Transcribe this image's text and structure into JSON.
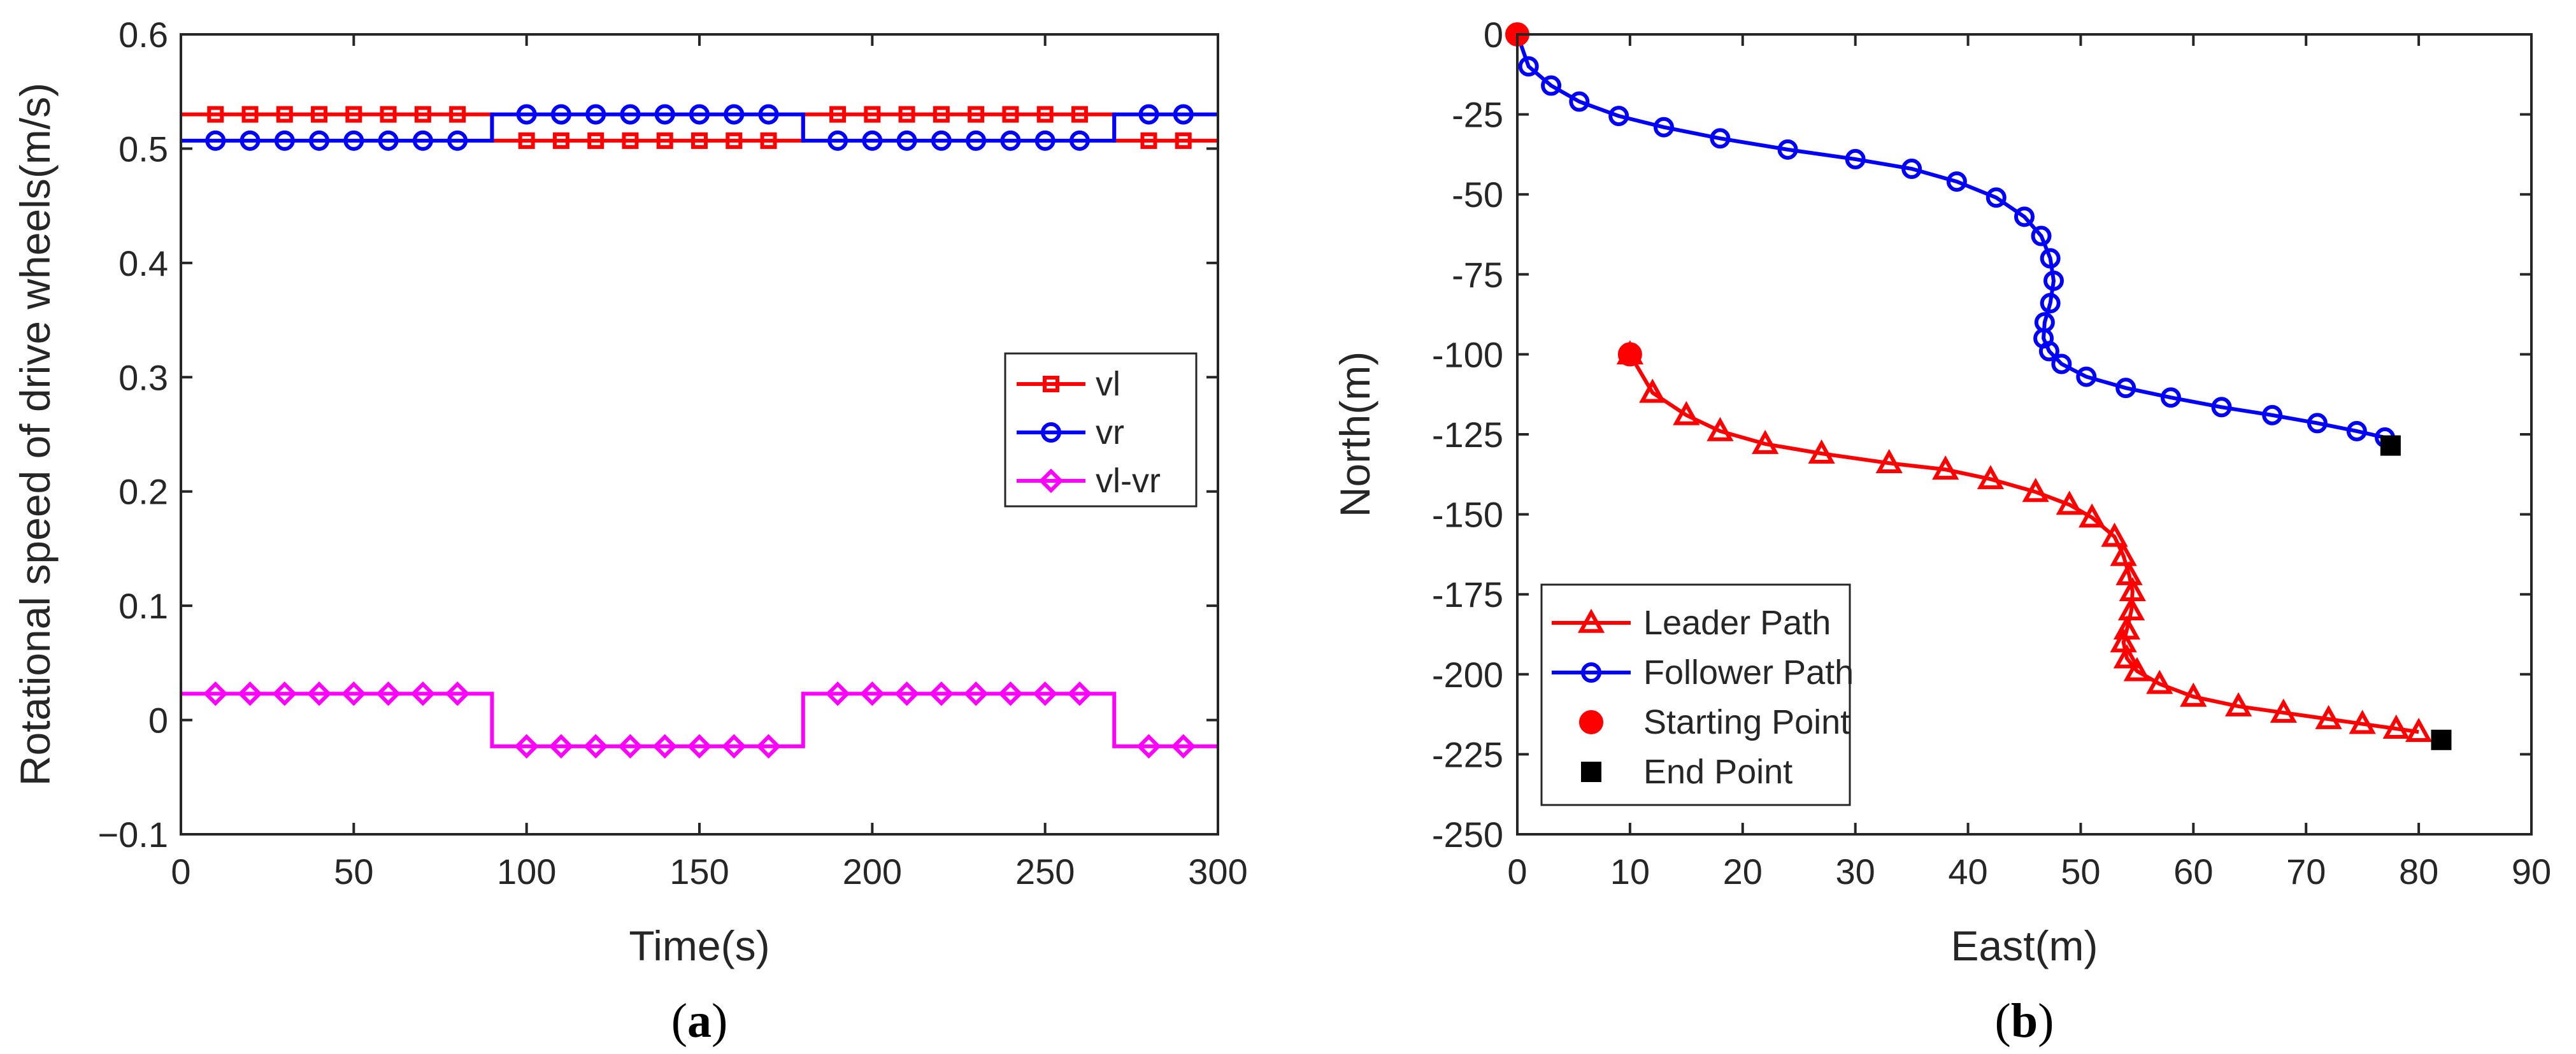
{
  "colors": {
    "red": "#FF0000",
    "blue": "#0000FF",
    "magenta": "#FF00FF",
    "black": "#000000",
    "axis": "#262626"
  },
  "panels": {
    "a": {
      "label_open": "(",
      "label_letter": "a",
      "label_close": ")"
    },
    "b": {
      "label_open": "(",
      "label_letter": "b",
      "label_close": ")"
    }
  },
  "chart_data": [
    {
      "type": "line",
      "panel": "a",
      "title": "",
      "xlabel": "Time(s)",
      "ylabel": "Rotational speed of drive wheels(m/s)",
      "xlim": [
        0,
        300
      ],
      "ylim": [
        -0.1,
        0.6
      ],
      "xticks": [
        0,
        50,
        100,
        150,
        200,
        250,
        300
      ],
      "xtick_labels": [
        "0",
        "50",
        "100",
        "150",
        "200",
        "250",
        "300"
      ],
      "yticks": [
        -0.1,
        0,
        0.1,
        0.2,
        0.3,
        0.4,
        0.5,
        0.6
      ],
      "ytick_labels": [
        "−0.1",
        "0",
        "0.1",
        "0.2",
        "0.3",
        "0.4",
        "0.5",
        "0.6"
      ],
      "legend_position": "right",
      "series": [
        {
          "name": "vl",
          "color": "#FF0000",
          "marker": "square",
          "breaks": [
            0,
            90,
            180,
            270,
            300
          ],
          "levels": [
            0.53,
            0.507,
            0.53,
            0.507
          ],
          "marker_x": [
            10,
            20,
            30,
            40,
            50,
            60,
            70,
            80,
            100,
            110,
            120,
            130,
            140,
            150,
            160,
            170,
            190,
            200,
            210,
            220,
            230,
            240,
            250,
            260,
            280,
            290
          ]
        },
        {
          "name": "vr",
          "color": "#0000FF",
          "marker": "circle",
          "breaks": [
            0,
            90,
            180,
            270,
            300
          ],
          "levels": [
            0.507,
            0.53,
            0.507,
            0.53
          ],
          "marker_x": [
            10,
            20,
            30,
            40,
            50,
            60,
            70,
            80,
            100,
            110,
            120,
            130,
            140,
            150,
            160,
            170,
            190,
            200,
            210,
            220,
            230,
            240,
            250,
            260,
            280,
            290
          ]
        },
        {
          "name": "vl-vr",
          "color": "#FF00FF",
          "marker": "diamond",
          "breaks": [
            0,
            90,
            180,
            270,
            300
          ],
          "levels": [
            0.023,
            -0.023,
            0.023,
            -0.023
          ],
          "marker_x": [
            10,
            20,
            30,
            40,
            50,
            60,
            70,
            80,
            100,
            110,
            120,
            130,
            140,
            150,
            160,
            170,
            190,
            200,
            210,
            220,
            230,
            240,
            250,
            260,
            280,
            290
          ]
        }
      ]
    },
    {
      "type": "line",
      "panel": "b",
      "title": "",
      "xlabel": "East(m)",
      "ylabel": "North(m)",
      "xlim": [
        0,
        90
      ],
      "ylim": [
        -250,
        0
      ],
      "xticks": [
        0,
        10,
        20,
        30,
        40,
        50,
        60,
        70,
        80,
        90
      ],
      "xtick_labels": [
        "0",
        "10",
        "20",
        "30",
        "40",
        "50",
        "60",
        "70",
        "80",
        "90"
      ],
      "yticks": [
        0,
        -25,
        -50,
        -75,
        -100,
        -125,
        -150,
        -175,
        -200,
        -225,
        -250
      ],
      "ytick_labels": [
        "0",
        "-25",
        "-50",
        "-75",
        "-100",
        "-125",
        "-150",
        "-175",
        "-200",
        "-225",
        "-250"
      ],
      "legend_position": "bottom-left",
      "series": [
        {
          "name": "Leader Path",
          "color": "#FF0000",
          "marker": "triangle",
          "x": [
            10,
            12,
            15,
            18,
            22,
            27,
            33,
            38,
            42,
            46,
            49,
            51,
            53,
            53.8,
            54.3,
            54.6,
            54.5,
            54.1,
            53.8,
            54.1,
            55,
            57,
            60,
            64,
            68,
            72,
            75,
            78,
            80
          ],
          "y": [
            -100,
            -112,
            -119,
            -124,
            -128,
            -131,
            -134,
            -136,
            -139,
            -143,
            -147,
            -151,
            -157,
            -163,
            -169,
            -174,
            -180,
            -186,
            -190,
            -195,
            -199,
            -203,
            -207,
            -210,
            -212,
            -214,
            -215.5,
            -217,
            -218
          ]
        },
        {
          "name": "Follower Path",
          "color": "#0000FF",
          "marker": "circle",
          "x": [
            0,
            1,
            3,
            5.5,
            9,
            13,
            18,
            24,
            30,
            35,
            39,
            42.5,
            45,
            46.5,
            47.3,
            47.6,
            47.3,
            46.8,
            46.7,
            47.2,
            48.3,
            50.5,
            54,
            58,
            62.5,
            67,
            71,
            74.5,
            77
          ],
          "y": [
            0,
            -10,
            -16,
            -21,
            -25.5,
            -29,
            -32.5,
            -36,
            -39,
            -42,
            -46,
            -51,
            -57,
            -63,
            -70,
            -77,
            -84,
            -90,
            -95,
            -99,
            -103,
            -107,
            -110.5,
            -113.5,
            -116.5,
            -119,
            -121.5,
            -124,
            -126
          ]
        },
        {
          "name": "Starting Point",
          "color": "#FF0000",
          "marker": "filled-circle",
          "style": "none",
          "x": [
            0,
            10
          ],
          "y": [
            0,
            -100
          ]
        },
        {
          "name": "End Point",
          "color": "#000000",
          "marker": "filled-square",
          "style": "none",
          "x": [
            77.5,
            82
          ],
          "y": [
            -128.5,
            -220.5
          ]
        }
      ]
    }
  ]
}
